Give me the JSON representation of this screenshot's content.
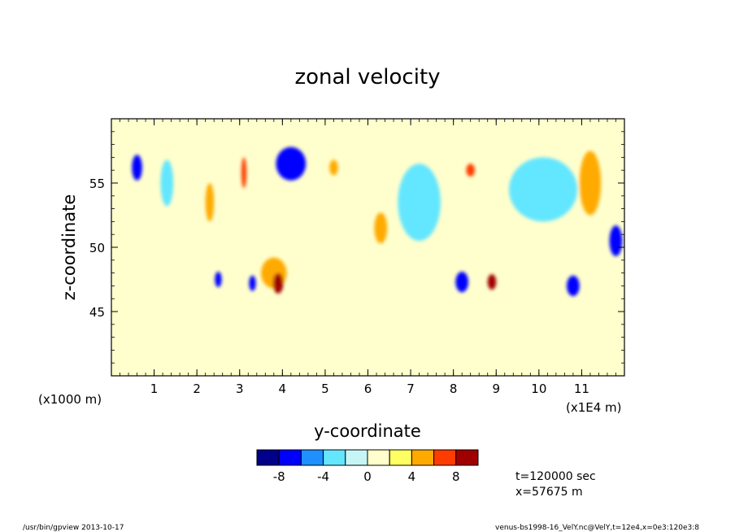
{
  "chart_data": {
    "type": "heatmap",
    "title": "zonal velocity",
    "xlabel": "y-coordinate",
    "ylabel": "z-coordinate",
    "x_unit_left": "(x1000 m)",
    "x_unit_right": "(x1E4 m)",
    "xlim": [
      0,
      12
    ],
    "ylim": [
      40,
      60
    ],
    "x_ticks": [
      1,
      2,
      3,
      4,
      5,
      6,
      7,
      8,
      9,
      10,
      11
    ],
    "y_ticks": [
      45,
      50,
      55
    ],
    "colorbar": {
      "labels": [
        "-8",
        "-4",
        "0",
        "4",
        "8"
      ],
      "levels": [
        -10,
        -8,
        -6,
        -4,
        -2,
        0,
        2,
        4,
        6,
        8,
        10
      ],
      "colors": [
        "#00008b",
        "#0000ff",
        "#1e90ff",
        "#64e6ff",
        "#c6f5f5",
        "#ffffcd",
        "#ffff64",
        "#ffaa00",
        "#ff3c00",
        "#a00000"
      ]
    },
    "regions": [
      {
        "y": 0.6,
        "z": 56.2,
        "value": -7,
        "ry": 0.12,
        "rz": 1.0
      },
      {
        "y": 1.3,
        "z": 55.0,
        "value": -3,
        "ry": 0.15,
        "rz": 1.8
      },
      {
        "y": 2.3,
        "z": 53.5,
        "value": 5,
        "ry": 0.1,
        "rz": 1.5
      },
      {
        "y": 3.1,
        "z": 55.8,
        "value": 6,
        "ry": 0.06,
        "rz": 1.2
      },
      {
        "y": 3.8,
        "z": 48.0,
        "value": 5,
        "ry": 0.3,
        "rz": 1.2
      },
      {
        "y": 3.9,
        "z": 47.2,
        "value": 8,
        "ry": 0.12,
        "rz": 0.8
      },
      {
        "y": 4.2,
        "z": 56.5,
        "value": -7,
        "ry": 0.35,
        "rz": 1.3
      },
      {
        "y": 2.5,
        "z": 47.5,
        "value": -7,
        "ry": 0.08,
        "rz": 0.6
      },
      {
        "y": 3.3,
        "z": 47.2,
        "value": -7,
        "ry": 0.08,
        "rz": 0.6
      },
      {
        "y": 5.2,
        "z": 56.2,
        "value": 5,
        "ry": 0.1,
        "rz": 0.6
      },
      {
        "y": 6.3,
        "z": 51.5,
        "value": 5,
        "ry": 0.15,
        "rz": 1.2
      },
      {
        "y": 8.4,
        "z": 56.0,
        "value": 6,
        "ry": 0.1,
        "rz": 0.5
      },
      {
        "y": 8.2,
        "z": 47.3,
        "value": -7,
        "ry": 0.15,
        "rz": 0.8
      },
      {
        "y": 8.9,
        "z": 47.3,
        "value": 8,
        "ry": 0.1,
        "rz": 0.6
      },
      {
        "y": 11.2,
        "z": 55.0,
        "value": 5,
        "ry": 0.25,
        "rz": 2.5
      },
      {
        "y": 11.8,
        "z": 50.5,
        "value": -7,
        "ry": 0.15,
        "rz": 1.2
      },
      {
        "y": 10.8,
        "z": 47.0,
        "value": -7,
        "ry": 0.15,
        "rz": 0.8
      },
      {
        "y": 10.1,
        "z": 54.5,
        "value": -3,
        "ry": 0.8,
        "rz": 2.5
      },
      {
        "y": 7.2,
        "z": 53.5,
        "value": -3,
        "ry": 0.5,
        "rz": 3.0
      }
    ],
    "annotations": [
      "t=120000 sec",
      "x=57675 m"
    ]
  },
  "footer": {
    "left": "/usr/bin/gpview   2013-10-17",
    "right": "venus-bs1998-16_VelY.nc@VelY,t=12e4,x=0e3:120e3:8"
  }
}
